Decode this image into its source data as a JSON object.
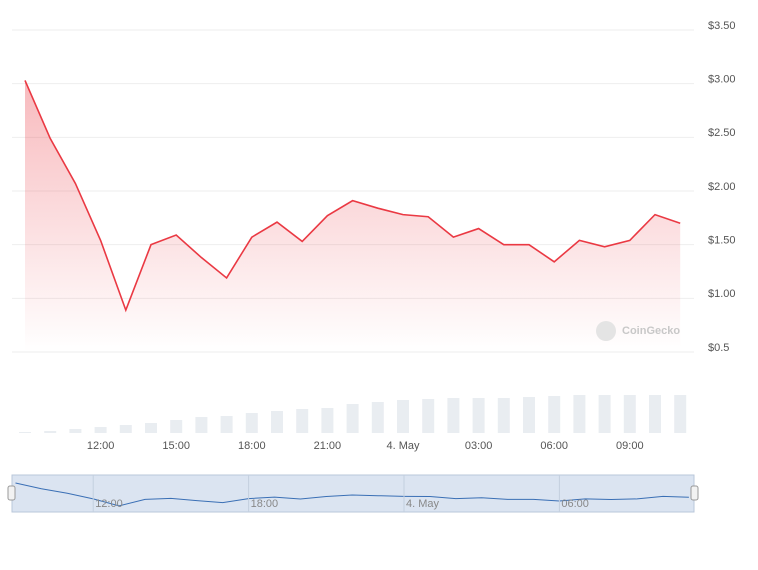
{
  "chart_data": {
    "type": "area",
    "categories": [
      null,
      null,
      null,
      "12:00",
      null,
      null,
      "15:00",
      null,
      null,
      "18:00",
      null,
      null,
      "21:00",
      null,
      null,
      "4. May",
      null,
      null,
      "03:00",
      null,
      null,
      "06:00",
      null,
      null,
      "09:00",
      null,
      null
    ],
    "values": [
      3.03,
      2.49,
      2.07,
      1.54,
      0.89,
      1.5,
      1.59,
      1.38,
      1.19,
      1.57,
      1.71,
      1.53,
      1.77,
      1.91,
      1.84,
      1.78,
      1.76,
      1.57,
      1.65,
      1.5,
      1.5,
      1.34,
      1.54,
      1.48,
      1.54,
      1.78,
      1.7
    ],
    "color": "#ea3943",
    "volume": [
      1,
      2,
      4,
      6,
      8,
      10,
      13,
      16,
      17,
      20,
      22,
      24,
      25,
      29,
      31,
      33,
      34,
      35,
      35,
      35,
      36,
      37,
      38,
      38,
      38,
      38,
      38
    ],
    "volume_color": "#e9edf1",
    "ylim": [
      0.5,
      3.5
    ],
    "yticks": [
      {
        "value": 0.5,
        "label": "$0.5"
      },
      {
        "value": 1,
        "label": "$1.00"
      },
      {
        "value": 1.5,
        "label": "$1.50"
      },
      {
        "value": 2,
        "label": "$2.00"
      },
      {
        "value": 2.5,
        "label": "$2.50"
      },
      {
        "value": 3,
        "label": "$3.00"
      },
      {
        "value": 3.5,
        "label": "$3.50"
      }
    ],
    "grid": true,
    "watermark": "CoinGecko",
    "navigator": {
      "labels": [
        {
          "index": 3,
          "label": "12:00"
        },
        {
          "index": 9,
          "label": "18:00"
        },
        {
          "index": 15,
          "label": "4. May"
        },
        {
          "index": 21,
          "label": "06:00"
        }
      ],
      "color": "#3a6fb5"
    }
  }
}
